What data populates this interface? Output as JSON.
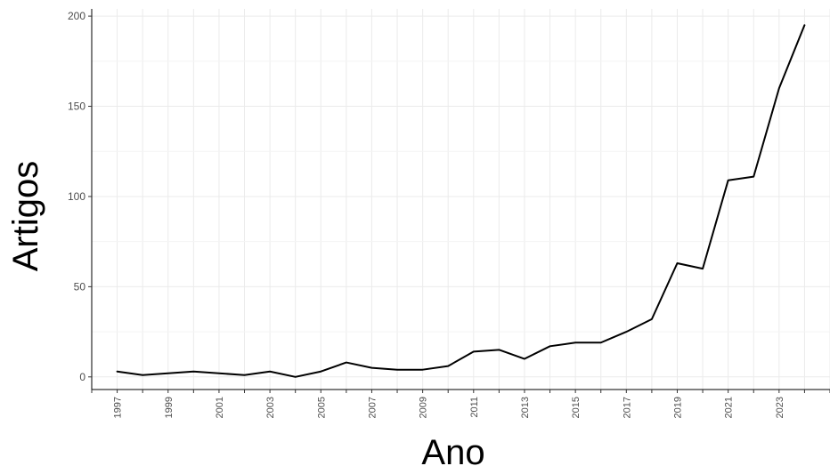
{
  "chart_data": {
    "type": "line",
    "title": "",
    "xlabel": "Ano",
    "ylabel": "Artigos",
    "xlim": [
      1996,
      2025
    ],
    "ylim": [
      -7,
      204
    ],
    "x": [
      1997,
      1998,
      1999,
      2000,
      2001,
      2002,
      2003,
      2004,
      2005,
      2006,
      2007,
      2008,
      2009,
      2010,
      2011,
      2012,
      2013,
      2014,
      2015,
      2016,
      2017,
      2018,
      2019,
      2020,
      2021,
      2022,
      2023,
      2024
    ],
    "series": [
      {
        "values": [
          3,
          1,
          2,
          3,
          2,
          1,
          3,
          0,
          3,
          8,
          5,
          4,
          4,
          6,
          14,
          15,
          10,
          17,
          19,
          19,
          25,
          32,
          63,
          60,
          109,
          111,
          160,
          195
        ],
        "color": "#000000"
      }
    ],
    "x_ticks": [
      "1997",
      "1999",
      "2001",
      "2003",
      "2005",
      "2007",
      "2009",
      "2011",
      "2013",
      "2015",
      "2017",
      "2019",
      "2021",
      "2023"
    ],
    "y_ticks": [
      "0",
      "50",
      "100",
      "150",
      "200"
    ],
    "grid": true,
    "legend": "none"
  }
}
